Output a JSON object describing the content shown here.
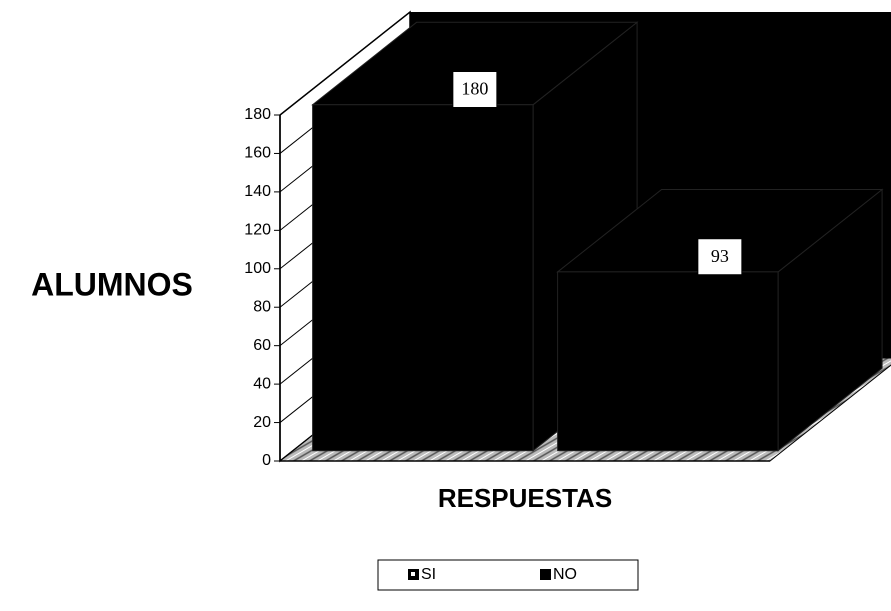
{
  "chart_data": {
    "type": "bar3d",
    "y_label": "ALUMNOS",
    "x_label": "RESPUESTAS",
    "categories": [
      null
    ],
    "series": [
      {
        "name": "SI",
        "color": "#000000",
        "values": [
          180
        ]
      },
      {
        "name": "NO",
        "color": "#000000",
        "values": [
          93
        ]
      }
    ],
    "ylim": [
      0,
      180
    ],
    "yticks": [
      0,
      20,
      40,
      60,
      80,
      100,
      120,
      140,
      160,
      180
    ],
    "grid": true,
    "legend": "bottom"
  }
}
